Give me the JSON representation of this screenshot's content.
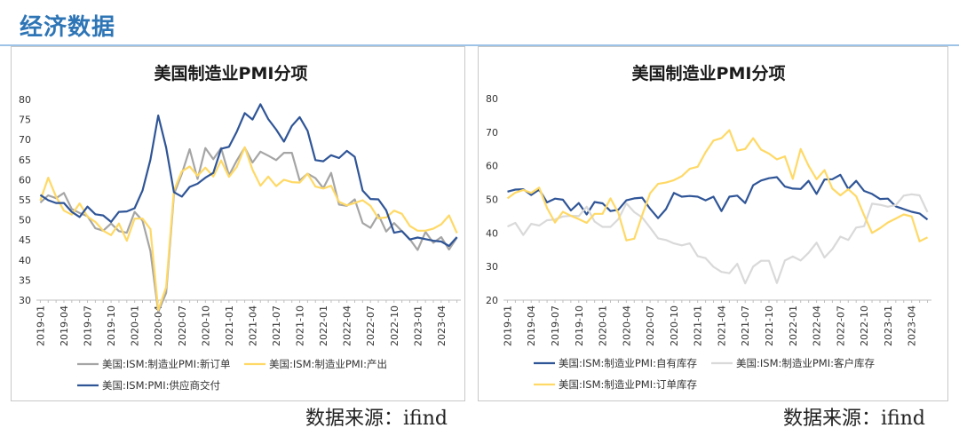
{
  "page": {
    "title": "经济数据",
    "source_left": "数据来源：ifind",
    "source_right": "数据来源：ifind"
  },
  "colors": {
    "title_blue": "#2e75b6",
    "series_gray": "#a5a5a5",
    "series_yellow": "#ffd966",
    "series_navy": "#2f5597",
    "series_light_gray": "#d9d9d9"
  },
  "chart_data": [
    {
      "type": "line",
      "title": "美国制造业PMI分项",
      "ylim": [
        30,
        80
      ],
      "yticks": [
        30,
        35,
        40,
        45,
        50,
        55,
        60,
        65,
        70,
        75,
        80
      ],
      "x": [
        "2019-01",
        "2019-02",
        "2019-03",
        "2019-04",
        "2019-05",
        "2019-06",
        "2019-07",
        "2019-08",
        "2019-09",
        "2019-10",
        "2019-11",
        "2019-12",
        "2020-01",
        "2020-02",
        "2020-03",
        "2020-04",
        "2020-05",
        "2020-06",
        "2020-07",
        "2020-08",
        "2020-09",
        "2020-10",
        "2020-11",
        "2020-12",
        "2021-01",
        "2021-02",
        "2021-03",
        "2021-04",
        "2021-05",
        "2021-06",
        "2021-07",
        "2021-08",
        "2021-09",
        "2021-10",
        "2021-11",
        "2021-12",
        "2022-01",
        "2022-02",
        "2022-03",
        "2022-04",
        "2022-05",
        "2022-06",
        "2022-07",
        "2022-08",
        "2022-09",
        "2022-10",
        "2022-11",
        "2022-12",
        "2023-01",
        "2023-02",
        "2023-03",
        "2023-04",
        "2023-05",
        "2023-06"
      ],
      "xtick_labels": [
        "2019-01",
        "2019-04",
        "2019-07",
        "2019-10",
        "2020-01",
        "2020-04",
        "2020-07",
        "2020-10",
        "2021-01",
        "2021-04",
        "2021-07",
        "2021-10",
        "2022-01",
        "2022-04",
        "2022-07",
        "2022-10",
        "2023-01",
        "2023-04"
      ],
      "grid": false,
      "legend_position": "bottom",
      "series": [
        {
          "name": "美国:ISM:制造业PMI:新订单",
          "color": "#a5a5a5",
          "values": [
            54.3,
            56.1,
            55.4,
            56.7,
            52.7,
            51.7,
            50.9,
            47.9,
            47.3,
            49.1,
            47.2,
            46.8,
            52.0,
            49.8,
            42.2,
            27.1,
            31.8,
            56.4,
            61.5,
            67.6,
            60.2,
            67.9,
            65.1,
            67.9,
            61.1,
            64.8,
            68.0,
            64.3,
            67.0,
            66.0,
            64.9,
            66.7,
            66.7,
            59.8,
            61.5,
            60.4,
            57.9,
            61.7,
            53.8,
            53.5,
            55.1,
            49.2,
            48.0,
            51.3,
            47.1,
            49.2,
            47.2,
            45.2,
            42.5,
            47.0,
            44.3,
            45.7,
            42.6,
            45.6
          ]
        },
        {
          "name": "美国:ISM:制造业PMI:产出",
          "color": "#ffd966",
          "values": [
            54.8,
            60.5,
            55.8,
            52.3,
            51.3,
            54.1,
            50.8,
            49.5,
            47.3,
            46.2,
            49.1,
            44.8,
            50.3,
            50.3,
            47.7,
            27.5,
            33.2,
            57.3,
            62.1,
            63.3,
            61.0,
            63.0,
            60.8,
            64.8,
            60.7,
            63.2,
            68.1,
            62.5,
            58.5,
            60.8,
            58.4,
            60.0,
            59.4,
            59.3,
            61.5,
            58.3,
            57.8,
            58.5,
            54.5,
            53.6,
            54.2,
            54.9,
            53.5,
            50.4,
            50.6,
            52.3,
            51.5,
            48.5,
            47.3,
            47.3,
            47.8,
            48.9,
            51.1,
            46.7
          ]
        },
        {
          "name": "美国:ISM:PMI:供应商交付",
          "color": "#2f5597",
          "values": [
            56.2,
            54.9,
            54.2,
            54.2,
            52.0,
            50.7,
            53.3,
            51.4,
            51.1,
            49.5,
            52.0,
            52.1,
            52.9,
            57.3,
            65.0,
            76.0,
            68.0,
            56.9,
            55.8,
            58.2,
            59.0,
            60.5,
            61.7,
            67.7,
            68.2,
            72.0,
            76.6,
            75.0,
            78.8,
            75.1,
            72.5,
            69.5,
            73.4,
            75.6,
            72.2,
            64.9,
            64.6,
            66.1,
            65.4,
            67.2,
            65.7,
            57.3,
            55.2,
            55.1,
            52.4,
            46.8,
            47.2,
            45.1,
            45.6,
            45.2,
            44.8,
            44.6,
            43.5,
            45.7
          ]
        }
      ]
    },
    {
      "type": "line",
      "title": "美国制造业PMI分项",
      "ylim": [
        20,
        80
      ],
      "yticks": [
        20,
        30,
        40,
        50,
        60,
        70,
        80
      ],
      "x": [
        "2019-01",
        "2019-02",
        "2019-03",
        "2019-04",
        "2019-05",
        "2019-06",
        "2019-07",
        "2019-08",
        "2019-09",
        "2019-10",
        "2019-11",
        "2019-12",
        "2020-01",
        "2020-02",
        "2020-03",
        "2020-04",
        "2020-05",
        "2020-06",
        "2020-07",
        "2020-08",
        "2020-09",
        "2020-10",
        "2020-11",
        "2020-12",
        "2021-01",
        "2021-02",
        "2021-03",
        "2021-04",
        "2021-05",
        "2021-06",
        "2021-07",
        "2021-08",
        "2021-09",
        "2021-10",
        "2021-11",
        "2021-12",
        "2022-01",
        "2022-02",
        "2022-03",
        "2022-04",
        "2022-05",
        "2022-06",
        "2022-07",
        "2022-08",
        "2022-09",
        "2022-10",
        "2022-11",
        "2022-12",
        "2023-01",
        "2023-02",
        "2023-03",
        "2023-04",
        "2023-05",
        "2023-06"
      ],
      "xtick_labels": [
        "2019-01",
        "2019-04",
        "2019-07",
        "2019-10",
        "2020-01",
        "2020-04",
        "2020-07",
        "2020-10",
        "2021-01",
        "2021-04",
        "2021-07",
        "2021-10",
        "2022-01",
        "2022-04",
        "2022-07",
        "2022-10",
        "2023-01",
        "2023-04"
      ],
      "grid": false,
      "legend_position": "bottom",
      "series": [
        {
          "name": "美国:ISM:制造业PMI:自有库存",
          "color": "#2f5597",
          "values": [
            52.3,
            52.9,
            53.0,
            51.3,
            52.9,
            49.1,
            50.2,
            49.9,
            46.7,
            48.9,
            45.5,
            49.2,
            48.8,
            46.5,
            46.9,
            49.7,
            50.3,
            50.5,
            47.2,
            44.4,
            47.1,
            51.9,
            50.8,
            51.0,
            50.8,
            49.7,
            50.8,
            46.5,
            50.8,
            51.1,
            48.9,
            54.2,
            55.6,
            56.3,
            56.6,
            53.8,
            53.2,
            53.1,
            55.5,
            51.6,
            55.9,
            56.0,
            57.3,
            53.1,
            55.5,
            52.5,
            51.6,
            50.1,
            50.2,
            47.9,
            47.1,
            46.3,
            45.8,
            44.0
          ]
        },
        {
          "name": "美国:ISM:制造业PMI:客户库存",
          "color": "#d9d9d9",
          "values": [
            41.9,
            43.0,
            39.4,
            42.7,
            42.2,
            43.8,
            44.0,
            44.9,
            45.1,
            45.0,
            47.8,
            43.4,
            41.8,
            41.8,
            44.1,
            48.8,
            46.2,
            44.6,
            41.6,
            38.4,
            37.9,
            36.9,
            36.3,
            36.9,
            33.1,
            32.5,
            29.9,
            28.4,
            28.0,
            30.8,
            25.0,
            30.0,
            31.7,
            31.7,
            25.1,
            31.8,
            33.0,
            31.8,
            34.1,
            37.1,
            32.7,
            35.2,
            38.9,
            37.9,
            41.6,
            42.0,
            48.7,
            48.4,
            47.8,
            48.3,
            51.1,
            51.5,
            51.2,
            46.2
          ]
        },
        {
          "name": "美国:ISM:制造业PMI:订单库存",
          "color": "#ffd966",
          "values": [
            50.3,
            52.0,
            52.8,
            51.9,
            53.5,
            47.4,
            43.1,
            46.3,
            45.1,
            44.1,
            43.0,
            45.7,
            45.7,
            50.3,
            45.9,
            37.8,
            38.3,
            45.3,
            51.8,
            54.6,
            55.0,
            55.7,
            56.9,
            59.1,
            59.7,
            64.0,
            67.5,
            68.2,
            70.6,
            64.5,
            65.0,
            68.2,
            64.8,
            63.6,
            61.9,
            62.8,
            56.1,
            65.0,
            60.0,
            56.0,
            58.7,
            53.2,
            51.2,
            53.0,
            50.9,
            45.3,
            40.0,
            41.4,
            43.1,
            44.3,
            45.5,
            44.9,
            37.5,
            38.7
          ]
        }
      ]
    }
  ]
}
